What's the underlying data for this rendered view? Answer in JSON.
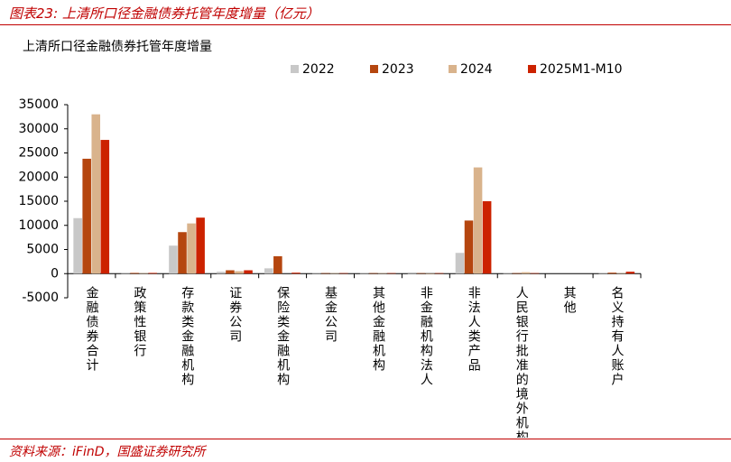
{
  "header": "图表23:  上清所口径金融债券托管年度增量（亿元）",
  "source": "资料来源：iFinD，国盛证券研究所",
  "chart_data": {
    "type": "bar",
    "title": "上清所口径金融债券托管年度增量",
    "categories": [
      "金融债券合计",
      "政策性银行",
      "存款类金融机构",
      "证券公司",
      "保险类金融机构",
      "基金公司",
      "其他金融机构",
      "非金融机构法人",
      "非法人类产品",
      "人民银行批准的境外机构",
      "其他",
      "名义持有人账户"
    ],
    "series": [
      {
        "name": "2022",
        "color": "#c8c8c8",
        "values": [
          11500,
          200,
          5800,
          400,
          1100,
          100,
          100,
          -100,
          4300,
          100,
          0,
          100
        ]
      },
      {
        "name": "2023",
        "color": "#b5460f",
        "values": [
          23800,
          150,
          8600,
          700,
          3600,
          100,
          100,
          100,
          11000,
          100,
          0,
          200
        ]
      },
      {
        "name": "2024",
        "color": "#d9b38c",
        "values": [
          33000,
          100,
          10400,
          500,
          0,
          100,
          100,
          -100,
          22000,
          300,
          0,
          100
        ]
      },
      {
        "name": "2025M1-M10",
        "color": "#cc2200",
        "values": [
          27700,
          150,
          11600,
          700,
          200,
          100,
          100,
          100,
          15000,
          100,
          0,
          400
        ]
      }
    ],
    "ylim": [
      -5000,
      35000
    ],
    "yticks": [
      -5000,
      0,
      5000,
      10000,
      15000,
      20000,
      25000,
      30000,
      35000
    ]
  }
}
